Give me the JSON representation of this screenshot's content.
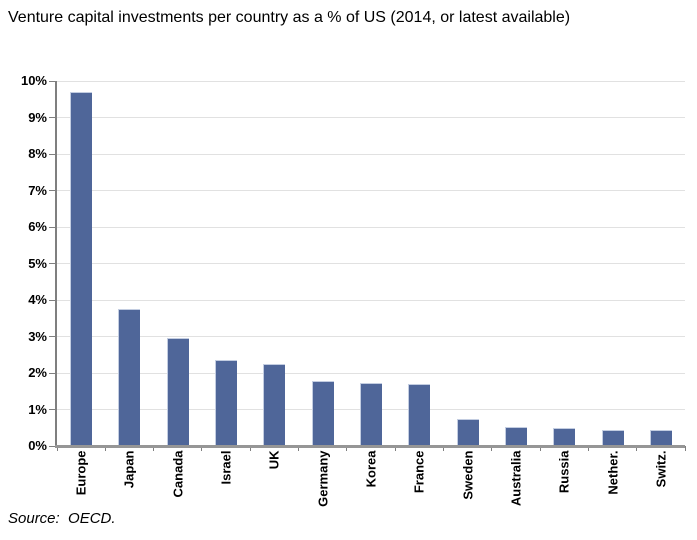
{
  "header": {
    "title": "Venture capital investments per country as a % of US (2014, or latest available)"
  },
  "footer": {
    "source": "Source:  OECD."
  },
  "colors": {
    "bar_fill": "#4F6699",
    "bar_edge_light": "#C3CDE1",
    "axis_line": "#7F7F7F",
    "baseline": "#969696",
    "gridline": "#E1E1E1",
    "text": "#000000"
  },
  "chart_data": {
    "type": "bar",
    "title": "Venture capital investments per country as a % of US (2014, or latest available)",
    "categories": [
      "Europe",
      "Japan",
      "Canada",
      "Israel",
      "UK",
      "Germany",
      "Korea",
      "France",
      "Sweden",
      "Australia",
      "Russia",
      "Nether.",
      "Switz."
    ],
    "values": [
      9.69,
      3.76,
      2.95,
      2.36,
      2.24,
      1.78,
      1.74,
      1.7,
      0.74,
      0.52,
      0.49,
      0.45,
      0.44
    ],
    "xlabel": "",
    "ylabel": "",
    "ylim": [
      0,
      10
    ],
    "ytick_values": [
      0,
      1,
      2,
      3,
      4,
      5,
      6,
      7,
      8,
      9,
      10
    ],
    "yticks": [
      "0%",
      "1%",
      "2%",
      "3%",
      "4%",
      "5%",
      "6%",
      "7%",
      "8%",
      "9%",
      "10%"
    ],
    "grid": true,
    "legend": false,
    "source": "OECD"
  }
}
